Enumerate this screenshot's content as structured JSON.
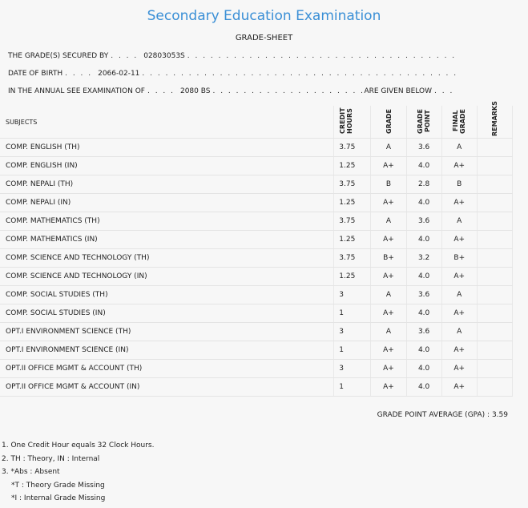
{
  "header": {
    "title": "Secondary Education Examination",
    "subtitle": "GRADE-SHEET"
  },
  "info": [
    {
      "label": "THE GRADE(S) SECURED BY",
      "value": "02803053S"
    },
    {
      "label": "DATE OF BIRTH",
      "value": "2066-02-11"
    },
    {
      "label": "IN THE ANNUAL SEE EXAMINATION OF",
      "value": "2080 BS",
      "suffix": "ARE GIVEN BELOW"
    }
  ],
  "table": {
    "columns": [
      "SUBJECTS",
      "CREDIT HOURS",
      "GRADE",
      "GRADE POINT",
      "FINAL GRADE",
      "REMARKS"
    ],
    "rows": [
      [
        "COMP. ENGLISH (TH)",
        "3.75",
        "A",
        "3.6",
        "A"
      ],
      [
        "COMP. ENGLISH (IN)",
        "1.25",
        "A+",
        "4.0",
        "A+"
      ],
      [
        "COMP. NEPALI (TH)",
        "3.75",
        "B",
        "2.8",
        "B"
      ],
      [
        "COMP. NEPALI (IN)",
        "1.25",
        "A+",
        "4.0",
        "A+"
      ],
      [
        "COMP. MATHEMATICS (TH)",
        "3.75",
        "A",
        "3.6",
        "A"
      ],
      [
        "COMP. MATHEMATICS (IN)",
        "1.25",
        "A+",
        "4.0",
        "A+"
      ],
      [
        "COMP. SCIENCE AND TECHNOLOGY (TH)",
        "3.75",
        "B+",
        "3.2",
        "B+"
      ],
      [
        "COMP. SCIENCE AND TECHNOLOGY (IN)",
        "1.25",
        "A+",
        "4.0",
        "A+"
      ],
      [
        "COMP. SOCIAL STUDIES (TH)",
        "3",
        "A",
        "3.6",
        "A"
      ],
      [
        "COMP. SOCIAL STUDIES (IN)",
        "1",
        "A+",
        "4.0",
        "A+"
      ],
      [
        "OPT.I ENVIRONMENT SCIENCE (TH)",
        "3",
        "A",
        "3.6",
        "A"
      ],
      [
        "OPT.I ENVIRONMENT SCIENCE (IN)",
        "1",
        "A+",
        "4.0",
        "A+"
      ],
      [
        "OPT.II OFFICE MGMT & ACCOUNT (TH)",
        "3",
        "A+",
        "4.0",
        "A+"
      ],
      [
        "OPT.II OFFICE MGMT & ACCOUNT (IN)",
        "1",
        "A+",
        "4.0",
        "A+"
      ]
    ]
  },
  "gpa": {
    "label": "GRADE POINT AVERAGE (GPA) :",
    "value": "3.59"
  },
  "notes": [
    "1. One Credit Hour equals 32 Clock Hours.",
    "2. TH : Theory, IN : Internal",
    {
      "text": "3. *Abs : Absent",
      "sub": [
        "*T : Theory Grade Missing",
        "*I : Internal Grade Missing"
      ]
    }
  ]
}
